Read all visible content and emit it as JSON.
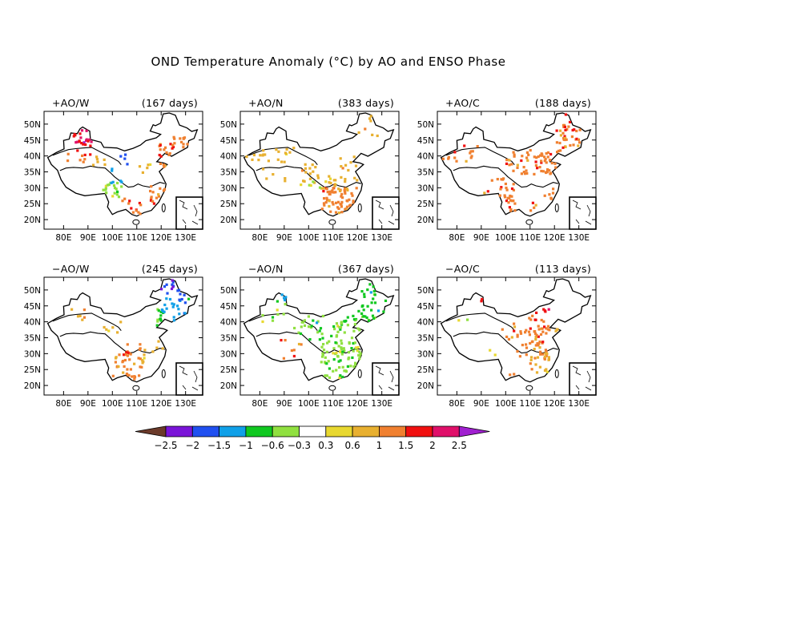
{
  "title": "OND Temperature Anomaly (°C) by AO and ENSO Phase",
  "lat_labels": [
    "20N",
    "25N",
    "30N",
    "35N",
    "40N",
    "45N",
    "50N"
  ],
  "lon_labels": [
    "80E",
    "90E",
    "100E",
    "110E",
    "120E",
    "130E"
  ],
  "panels": [
    {
      "label": "+AO/W",
      "days": "(167 days)"
    },
    {
      "label": "+AO/N",
      "days": "(383 days)"
    },
    {
      "label": "+AO/C",
      "days": "(188 days)"
    },
    {
      "label": "−AO/W",
      "days": "(245 days)"
    },
    {
      "label": "−AO/N",
      "days": "(367 days)"
    },
    {
      "label": "−AO/C",
      "days": "(113 days)"
    }
  ],
  "colorbar": {
    "ticks": [
      "−2.5",
      "−2",
      "−1.5",
      "−1",
      "−0.6",
      "−0.3",
      "0.3",
      "0.6",
      "1",
      "1.5",
      "2",
      "2.5"
    ],
    "colors": [
      "#6b3a2a",
      "#7a14d8",
      "#2050f0",
      "#10a0e8",
      "#10c820",
      "#90e040",
      "#ffffff",
      "#e8d830",
      "#e8b030",
      "#f08030",
      "#f01010",
      "#e0106a",
      "#a020d0"
    ]
  }
}
